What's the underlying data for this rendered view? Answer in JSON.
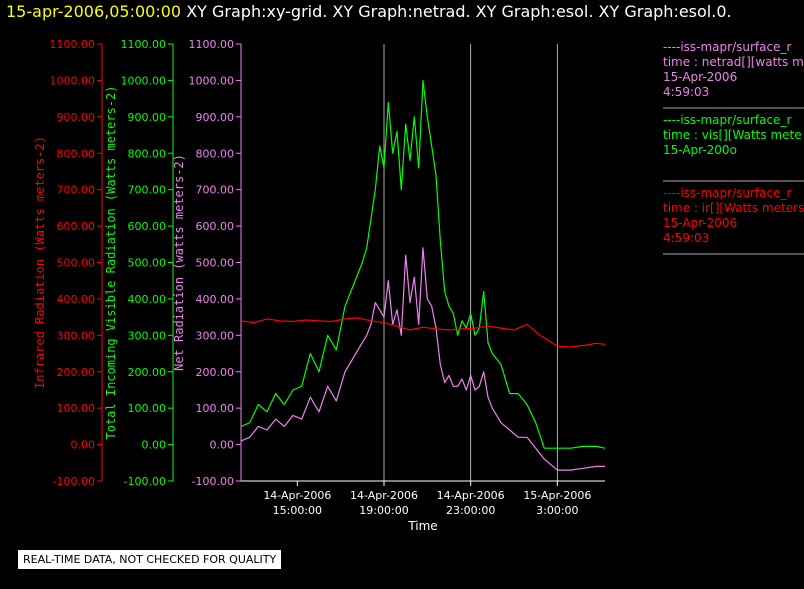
{
  "header": {
    "timestamp": "15-apr-2006,05:00:00",
    "titles": "XY Graph:xy-grid.  XY Graph:netrad.  XY Graph:esol.  XY Graph:esol.0."
  },
  "colors": {
    "infrared": "#ff0000",
    "visible": "#00ff00",
    "net": "#ee82ee",
    "axis_x": "#ffffff",
    "grid": "#ffffff"
  },
  "legend": [
    {
      "lines": [
        "----iss-mapr/surface_r",
        "time : netrad[][watts m",
        "15-Apr-2006",
        "4:59:03"
      ],
      "color": "#ee82ee"
    },
    {
      "lines": [
        "----iss-mapr/surface_r",
        "time : vis[][Watts mete",
        "15-Apr-200o"
      ],
      "color": "#00ff00"
    },
    {
      "lines": [
        "----iss-mapr/surface_r",
        "time : ir[][Watts meters",
        "15-Apr-2006",
        "4:59:03"
      ],
      "color": "#ff0000"
    }
  ],
  "notice": "REAL-TIME DATA, NOT CHECKED FOR QUALITY",
  "chart_data": {
    "type": "line",
    "xlabel": "Time",
    "x_ticks": [
      {
        "t": 14,
        "label1": "14-Apr-2006",
        "label2": "15:00:00"
      },
      {
        "t": 18,
        "label1": "14-Apr-2006",
        "label2": "19:00:00"
      },
      {
        "t": 22,
        "label1": "14-Apr-2006",
        "label2": "23:00:00"
      },
      {
        "t": 26,
        "label1": "15-Apr-2006",
        "label2": "3:00:00"
      }
    ],
    "xlim": [
      11.4,
      28.2
    ],
    "gridlines_x": [
      18,
      22,
      26
    ],
    "y_axes": [
      {
        "name": "infrared",
        "label": "Infrared Radiation (Watts meters-2)",
        "color": "#ff0000",
        "ticks": [
          "1100.00",
          "1000.00",
          "900.00",
          "800.00",
          "700.00",
          "600.00",
          "500.00",
          "400.00",
          "300.00",
          "200.00",
          "100.00",
          "0.00",
          "-100.00"
        ]
      },
      {
        "name": "visible",
        "label": "Total Incoming Visible Radiation (Watts meters-2)",
        "color": "#00ff00",
        "ticks": [
          "1100.00",
          "1000.00",
          "900.00",
          "800.00",
          "700.00",
          "600.00",
          "500.00",
          "400.00",
          "300.00",
          "200.00",
          "100.00",
          "0.00",
          "-100.00"
        ]
      },
      {
        "name": "net",
        "label": "Net Radiation (watts meters-2)",
        "color": "#ee82ee",
        "ticks": [
          "1100.00",
          "1000.00",
          "900.00",
          "800.00",
          "700.00",
          "600.00",
          "500.00",
          "400.00",
          "300.00",
          "200.00",
          "100.00",
          "0.00",
          "-100.00"
        ]
      }
    ],
    "ylim": [
      -100,
      1100
    ],
    "series": [
      {
        "name": "vis",
        "color": "#00ff00",
        "x": [
          11.4,
          11.8,
          12.2,
          12.6,
          13.0,
          13.4,
          13.8,
          14.2,
          14.6,
          15.0,
          15.4,
          15.8,
          16.2,
          16.6,
          17.0,
          17.2,
          17.4,
          17.6,
          17.8,
          18.0,
          18.2,
          18.4,
          18.6,
          18.8,
          19.0,
          19.2,
          19.4,
          19.6,
          19.8,
          20.0,
          20.2,
          20.4,
          20.6,
          20.8,
          21.0,
          21.2,
          21.4,
          21.6,
          21.8,
          22.0,
          22.2,
          22.4,
          22.6,
          22.8,
          23.0,
          23.4,
          23.8,
          24.2,
          24.6,
          25.0,
          25.4,
          26.0,
          26.6,
          27.2,
          27.8,
          28.2
        ],
        "y": [
          50,
          60,
          110,
          90,
          140,
          110,
          150,
          160,
          250,
          200,
          300,
          260,
          380,
          440,
          500,
          540,
          620,
          700,
          820,
          760,
          940,
          800,
          860,
          700,
          880,
          780,
          900,
          760,
          1000,
          900,
          820,
          740,
          560,
          420,
          380,
          360,
          300,
          340,
          320,
          360,
          300,
          320,
          420,
          280,
          250,
          220,
          140,
          140,
          110,
          60,
          -10,
          -10,
          -10,
          -5,
          -5,
          -10
        ]
      },
      {
        "name": "netrad",
        "color": "#ee82ee",
        "x": [
          11.4,
          11.8,
          12.2,
          12.6,
          13.0,
          13.4,
          13.8,
          14.2,
          14.6,
          15.0,
          15.4,
          15.8,
          16.2,
          16.6,
          17.0,
          17.2,
          17.4,
          17.6,
          17.8,
          18.0,
          18.2,
          18.4,
          18.6,
          18.8,
          19.0,
          19.2,
          19.4,
          19.6,
          19.8,
          20.0,
          20.2,
          20.4,
          20.6,
          20.8,
          21.0,
          21.2,
          21.4,
          21.6,
          21.8,
          22.0,
          22.2,
          22.4,
          22.6,
          22.8,
          23.0,
          23.4,
          23.8,
          24.2,
          24.6,
          25.0,
          25.4,
          26.0,
          26.6,
          27.2,
          27.8,
          28.2
        ],
        "y": [
          10,
          20,
          50,
          40,
          70,
          50,
          80,
          70,
          130,
          90,
          160,
          120,
          200,
          240,
          280,
          300,
          330,
          390,
          370,
          350,
          450,
          330,
          370,
          300,
          520,
          390,
          460,
          330,
          540,
          400,
          380,
          320,
          220,
          170,
          190,
          160,
          160,
          180,
          150,
          190,
          150,
          160,
          200,
          130,
          100,
          60,
          40,
          20,
          20,
          -10,
          -40,
          -70,
          -70,
          -65,
          -60,
          -60
        ]
      },
      {
        "name": "ir",
        "color": "#ff0000",
        "x": [
          11.4,
          12.0,
          12.6,
          13.2,
          13.8,
          14.4,
          15.0,
          15.6,
          16.2,
          16.8,
          17.4,
          18.0,
          18.6,
          19.2,
          19.8,
          20.4,
          21.0,
          21.6,
          22.2,
          22.8,
          23.4,
          24.0,
          24.6,
          25.2,
          25.6,
          26.0,
          26.6,
          27.2,
          27.8,
          28.2
        ],
        "y": [
          340,
          335,
          345,
          340,
          338,
          342,
          340,
          338,
          345,
          348,
          340,
          335,
          325,
          315,
          322,
          318,
          315,
          318,
          320,
          325,
          320,
          315,
          330,
          300,
          285,
          270,
          268,
          272,
          278,
          275
        ]
      }
    ]
  }
}
